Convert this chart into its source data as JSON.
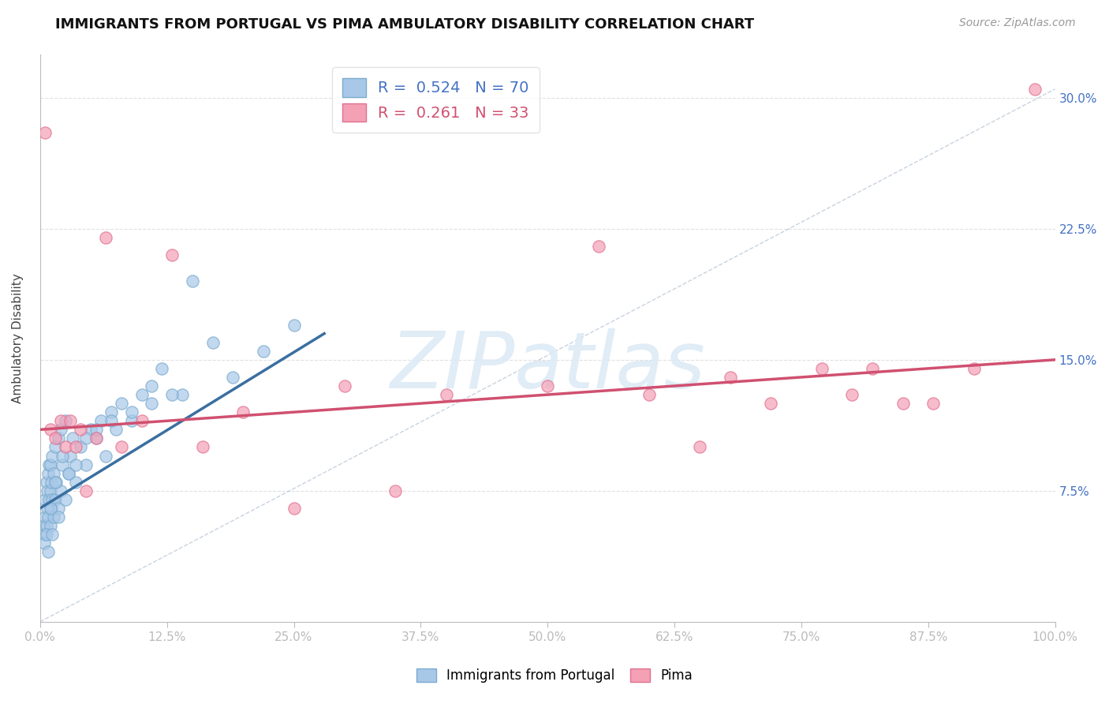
{
  "title": "IMMIGRANTS FROM PORTUGAL VS PIMA AMBULATORY DISABILITY CORRELATION CHART",
  "source": "Source: ZipAtlas.com",
  "ylabel": "Ambulatory Disability",
  "xlim": [
    0.0,
    100.0
  ],
  "ylim": [
    0.0,
    32.5
  ],
  "yticks": [
    7.5,
    15.0,
    22.5,
    30.0
  ],
  "xticks": [
    0.0,
    12.5,
    25.0,
    37.5,
    50.0,
    62.5,
    75.0,
    87.5,
    100.0
  ],
  "blue_R": 0.524,
  "blue_N": 70,
  "pink_R": 0.261,
  "pink_N": 33,
  "blue_color": "#a8c8e8",
  "pink_color": "#f4a0b5",
  "blue_edge": "#7aaace",
  "pink_edge": "#e07090",
  "blue_label": "Immigrants from Portugal",
  "pink_label": "Pima",
  "watermark": "ZIPatlas",
  "background_color": "#ffffff",
  "blue_scatter_x": [
    0.3,
    0.4,
    0.5,
    0.5,
    0.6,
    0.6,
    0.7,
    0.7,
    0.8,
    0.8,
    0.9,
    0.9,
    1.0,
    1.0,
    1.0,
    1.1,
    1.1,
    1.2,
    1.2,
    1.3,
    1.3,
    1.5,
    1.5,
    1.6,
    1.8,
    1.8,
    2.0,
    2.0,
    2.2,
    2.5,
    2.5,
    2.8,
    3.0,
    3.2,
    3.5,
    4.0,
    4.5,
    5.0,
    5.5,
    6.0,
    6.5,
    7.0,
    7.5,
    8.0,
    9.0,
    10.0,
    11.0,
    12.0,
    14.0,
    15.0,
    0.4,
    0.6,
    0.8,
    1.0,
    1.2,
    1.5,
    1.8,
    2.2,
    2.8,
    3.5,
    4.5,
    5.5,
    7.0,
    9.0,
    11.0,
    13.0,
    17.0,
    19.0,
    22.0,
    25.0
  ],
  "blue_scatter_y": [
    5.5,
    5.0,
    6.0,
    7.0,
    5.5,
    8.0,
    6.5,
    7.5,
    6.0,
    8.5,
    7.0,
    9.0,
    5.5,
    7.5,
    9.0,
    6.5,
    8.0,
    7.0,
    9.5,
    6.0,
    8.5,
    7.0,
    10.0,
    8.0,
    6.5,
    10.5,
    7.5,
    11.0,
    9.0,
    7.0,
    11.5,
    8.5,
    9.5,
    10.5,
    8.0,
    10.0,
    9.0,
    11.0,
    10.5,
    11.5,
    9.5,
    12.0,
    11.0,
    12.5,
    11.5,
    13.0,
    12.5,
    14.5,
    13.0,
    19.5,
    4.5,
    5.0,
    4.0,
    6.5,
    5.0,
    8.0,
    6.0,
    9.5,
    8.5,
    9.0,
    10.5,
    11.0,
    11.5,
    12.0,
    13.5,
    13.0,
    16.0,
    14.0,
    15.5,
    17.0
  ],
  "pink_scatter_x": [
    0.5,
    1.0,
    1.5,
    2.0,
    2.5,
    3.0,
    3.5,
    4.0,
    4.5,
    5.5,
    6.5,
    8.0,
    10.0,
    13.0,
    16.0,
    20.0,
    25.0,
    30.0,
    35.0,
    40.0,
    50.0,
    55.0,
    60.0,
    65.0,
    68.0,
    72.0,
    77.0,
    80.0,
    82.0,
    85.0,
    88.0,
    92.0,
    98.0
  ],
  "pink_scatter_y": [
    28.0,
    11.0,
    10.5,
    11.5,
    10.0,
    11.5,
    10.0,
    11.0,
    7.5,
    10.5,
    22.0,
    10.0,
    11.5,
    21.0,
    10.0,
    12.0,
    6.5,
    13.5,
    7.5,
    13.0,
    13.5,
    21.5,
    13.0,
    10.0,
    14.0,
    12.5,
    14.5,
    13.0,
    14.5,
    12.5,
    12.5,
    14.5,
    30.5
  ],
  "blue_trend_x": [
    0.0,
    28.0
  ],
  "blue_trend_y": [
    6.5,
    16.5
  ],
  "pink_trend_x": [
    0.0,
    100.0
  ],
  "pink_trend_y": [
    11.0,
    15.0
  ],
  "ref_line_x": [
    0.0,
    100.0
  ],
  "ref_line_y": [
    0.0,
    30.5
  ]
}
